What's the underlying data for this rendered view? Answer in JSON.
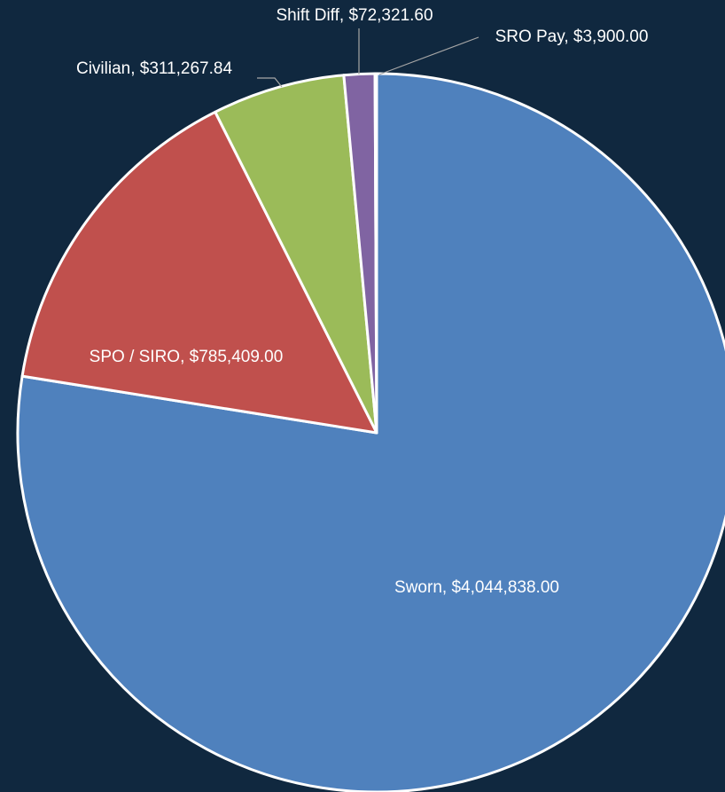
{
  "chart_data": {
    "type": "pie",
    "values": [
      4044838.0,
      785409.0,
      311267.84,
      72321.6,
      3900.0
    ],
    "value_labels": [
      "Sworn, $4,044,838.00",
      "SPO / SIRO, $785,409.00",
      "Civilian, $311,267.84",
      "Shift Diff, $72,321.60",
      "SRO Pay, $3,900.00"
    ],
    "colors": [
      "#4f81bd",
      "#c0504d",
      "#9bbb59",
      "#8064a2",
      "#4bacc6"
    ]
  }
}
